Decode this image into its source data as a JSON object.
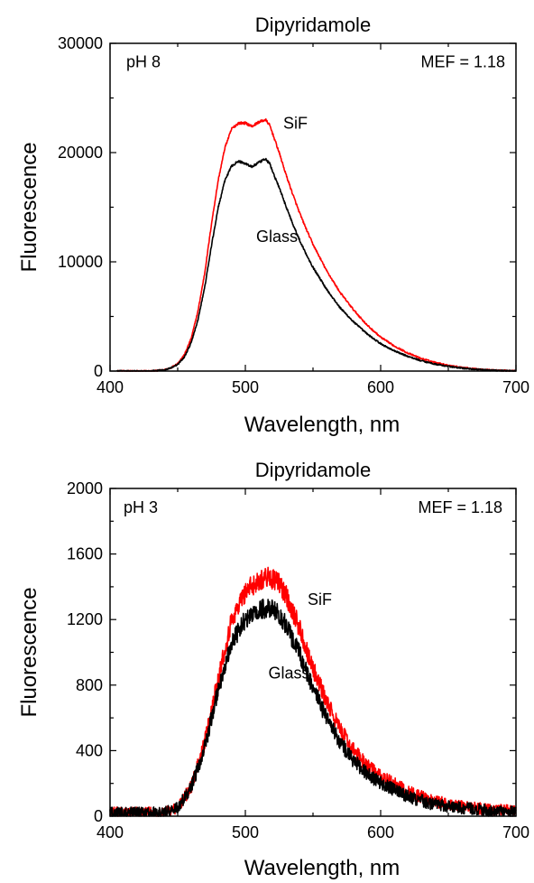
{
  "chart_data": [
    {
      "type": "line",
      "title": "Dipyridamole",
      "xlabel": "Wavelength, nm",
      "ylabel": "Fluorescence",
      "xlim": [
        400,
        700
      ],
      "ylim": [
        0,
        30000
      ],
      "xticks": [
        400,
        500,
        600,
        700
      ],
      "yticks": [
        0,
        10000,
        20000,
        30000
      ],
      "grid": false,
      "noise": 0.004,
      "annotations": [
        {
          "text": "pH 8",
          "x": 412,
          "y": 27800,
          "anchor": "start"
        },
        {
          "text": "MEF = 1.18",
          "x": 692,
          "y": 27800,
          "anchor": "end"
        },
        {
          "text": "SiF",
          "x": 528,
          "y": 22200,
          "anchor": "start"
        },
        {
          "text": "Glass",
          "x": 508,
          "y": 11800,
          "anchor": "start"
        }
      ],
      "series": [
        {
          "color": "#ff0000",
          "x": [
            405,
            420,
            430,
            440,
            445,
            450,
            455,
            460,
            465,
            470,
            475,
            480,
            485,
            490,
            495,
            500,
            505,
            510,
            515,
            518,
            520,
            525,
            530,
            535,
            540,
            545,
            550,
            560,
            570,
            580,
            590,
            600,
            610,
            620,
            630,
            640,
            650,
            660,
            670,
            680,
            690,
            700
          ],
          "y": [
            0,
            0,
            0,
            100,
            300,
            700,
            1500,
            3000,
            5500,
            9000,
            13500,
            17500,
            20500,
            22200,
            22700,
            22700,
            22400,
            22800,
            23000,
            22500,
            21800,
            20000,
            18000,
            16200,
            14500,
            13000,
            11600,
            9200,
            7200,
            5600,
            4200,
            3100,
            2300,
            1650,
            1150,
            800,
            520,
            330,
            200,
            100,
            50,
            20
          ]
        },
        {
          "color": "#000000",
          "x": [
            405,
            420,
            430,
            440,
            445,
            450,
            455,
            460,
            465,
            470,
            475,
            480,
            485,
            490,
            495,
            500,
            505,
            510,
            515,
            518,
            520,
            525,
            530,
            535,
            540,
            545,
            550,
            560,
            570,
            580,
            590,
            600,
            610,
            620,
            630,
            640,
            650,
            660,
            670,
            680,
            690,
            700
          ],
          "y": [
            0,
            0,
            0,
            100,
            300,
            600,
            1300,
            2600,
            4700,
            7700,
            11500,
            15000,
            17500,
            18800,
            19200,
            19000,
            18700,
            19100,
            19400,
            19000,
            18300,
            16800,
            15100,
            13500,
            12000,
            10700,
            9500,
            7500,
            5800,
            4500,
            3400,
            2500,
            1850,
            1350,
            950,
            650,
            430,
            270,
            160,
            80,
            40,
            10
          ]
        }
      ]
    },
    {
      "type": "line",
      "title": "Dipyridamole",
      "xlabel": "Wavelength, nm",
      "ylabel": "Fluorescence",
      "xlim": [
        400,
        700
      ],
      "ylim": [
        0,
        2000
      ],
      "xticks": [
        400,
        500,
        600,
        700
      ],
      "yticks": [
        0,
        400,
        800,
        1200,
        1600,
        2000
      ],
      "grid": false,
      "noise": 0.035,
      "annotations": [
        {
          "text": "pH 3",
          "x": 410,
          "y": 1850,
          "anchor": "start"
        },
        {
          "text": "MEF = 1.18",
          "x": 690,
          "y": 1850,
          "anchor": "end"
        },
        {
          "text": "SiF",
          "x": 546,
          "y": 1290,
          "anchor": "start"
        },
        {
          "text": "Glass",
          "x": 517,
          "y": 840,
          "anchor": "start"
        }
      ],
      "series": [
        {
          "color": "#ff0000",
          "x": [
            400,
            420,
            440,
            450,
            460,
            470,
            480,
            490,
            500,
            510,
            515,
            520,
            525,
            530,
            540,
            550,
            560,
            570,
            580,
            590,
            600,
            620,
            640,
            660,
            680,
            700
          ],
          "y": [
            20,
            20,
            20,
            50,
            180,
            450,
            850,
            1200,
            1370,
            1440,
            1460,
            1450,
            1420,
            1350,
            1150,
            900,
            700,
            530,
            400,
            310,
            240,
            150,
            90,
            60,
            40,
            30
          ]
        },
        {
          "color": "#000000",
          "x": [
            400,
            420,
            440,
            450,
            460,
            470,
            480,
            490,
            500,
            510,
            515,
            520,
            525,
            530,
            540,
            550,
            560,
            570,
            580,
            590,
            600,
            620,
            640,
            660,
            680,
            700
          ],
          "y": [
            20,
            20,
            20,
            50,
            170,
            420,
            780,
            1060,
            1200,
            1250,
            1270,
            1260,
            1230,
            1170,
            990,
            780,
            600,
            450,
            340,
            260,
            200,
            120,
            70,
            50,
            35,
            25
          ]
        }
      ]
    }
  ]
}
